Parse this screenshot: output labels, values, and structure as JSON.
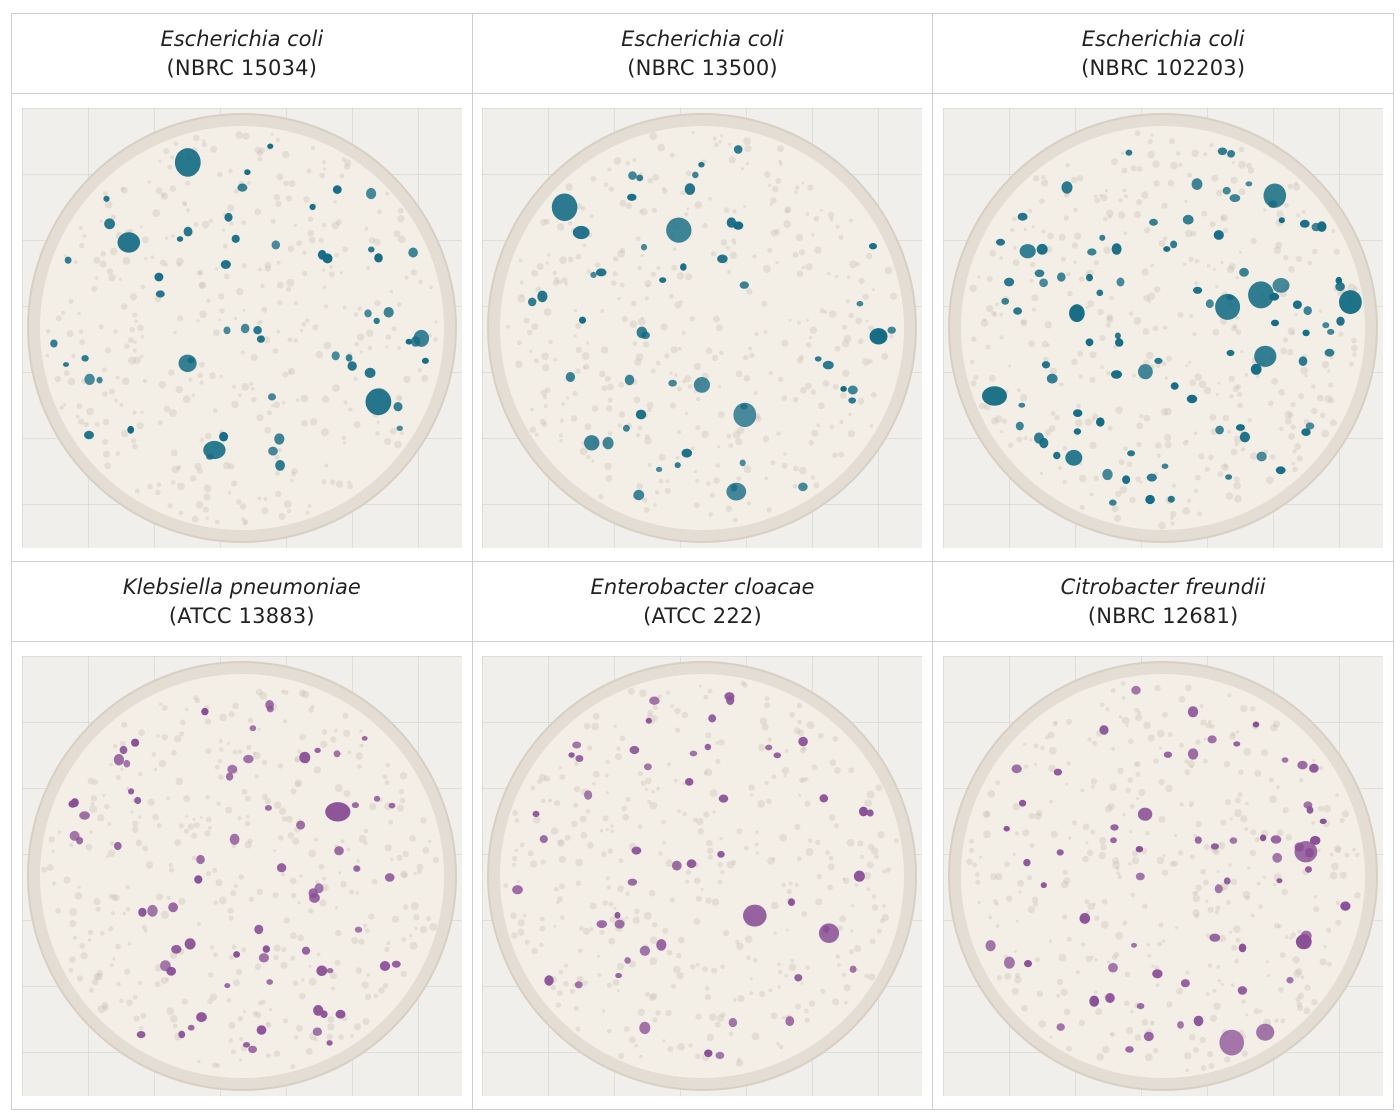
{
  "colors": {
    "blue_colony": "#136b84",
    "purple_colony": "#8a4f96",
    "plate_rim": "#e4ddd4",
    "plate_medium": "#f3efe7",
    "grid_border": "#cfcfcf"
  },
  "plates": [
    {
      "species": "Escherichia coli",
      "strain": "(NBRC 15034)",
      "colony_color": "blue_colony",
      "colony_count": 58,
      "seed": 11
    },
    {
      "species": "Escherichia coli",
      "strain": "(NBRC 13500)",
      "colony_color": "blue_colony",
      "colony_count": 52,
      "seed": 23
    },
    {
      "species": "Escherichia coli",
      "strain": "(NBRC 102203)",
      "colony_color": "blue_colony",
      "colony_count": 95,
      "seed": 37
    },
    {
      "species": "Klebsiella pneumoniae",
      "strain": "(ATCC 13883)",
      "colony_color": "purple_colony",
      "colony_count": 70,
      "seed": 41
    },
    {
      "species": "Enterobacter cloacae",
      "strain": "(ATCC 222)",
      "colony_color": "purple_colony",
      "colony_count": 50,
      "seed": 53
    },
    {
      "species": "Citrobacter freundii",
      "strain": "(NBRC 12681)",
      "colony_color": "purple_colony",
      "colony_count": 65,
      "seed": 67
    }
  ]
}
